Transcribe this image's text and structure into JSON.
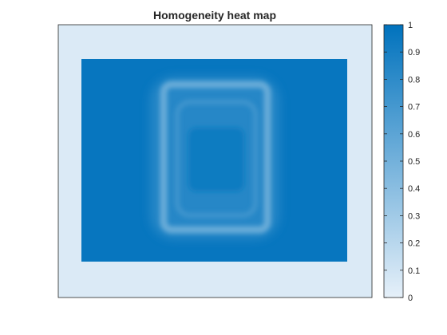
{
  "chart_data": {
    "type": "heatmap",
    "title": "Homogeneity heat map",
    "xlabel": "",
    "ylabel": "",
    "color_range": [
      0,
      1
    ],
    "colorbar": {
      "ticks": [
        0,
        0.1,
        0.2,
        0.3,
        0.4,
        0.5,
        0.6,
        0.7,
        0.8,
        0.9,
        1
      ],
      "tick_labels": [
        "0",
        "0.1",
        "0.2",
        "0.3",
        "0.4",
        "0.5",
        "0.6",
        "0.7",
        "0.8",
        "0.9",
        "1"
      ],
      "low_color": "#e6f0f9",
      "high_color": "#0072bd"
    },
    "axis_ticks_visible": false,
    "grid": false,
    "field_description_values": {
      "background": 0.05,
      "region": 0.97,
      "inner_zone": 0.93,
      "ring_min": 0.55,
      "inner_ring_min": 0.72
    }
  }
}
